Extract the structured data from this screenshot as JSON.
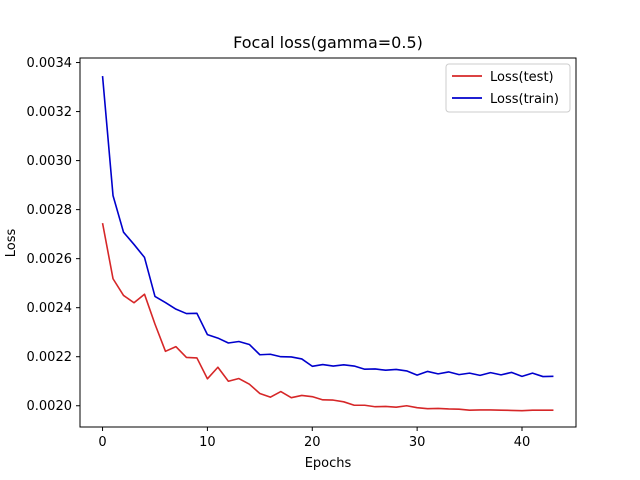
{
  "chart_data": {
    "type": "line",
    "title": "Focal loss(gamma=0.5)",
    "xlabel": "Epochs",
    "ylabel": "Loss",
    "xlim": [
      -2.15,
      45.15
    ],
    "ylim": [
      0.0019133,
      0.0034185
    ],
    "xticks": [
      0,
      10,
      20,
      30,
      40
    ],
    "yticks": [
      0.002,
      0.0022,
      0.0024,
      0.0026,
      0.0028,
      0.003,
      0.0032,
      0.0034
    ],
    "ytick_labels": [
      "0.0020",
      "0.0022",
      "0.0024",
      "0.0026",
      "0.0028",
      "0.0030",
      "0.0032",
      "0.0034"
    ],
    "grid": false,
    "legend_position": "top-right",
    "x": [
      0,
      1,
      2,
      3,
      4,
      5,
      6,
      7,
      8,
      9,
      10,
      11,
      12,
      13,
      14,
      15,
      16,
      17,
      18,
      19,
      20,
      21,
      22,
      23,
      24,
      25,
      26,
      27,
      28,
      29,
      30,
      31,
      32,
      33,
      34,
      35,
      36,
      37,
      38,
      39,
      40,
      41,
      42,
      43
    ],
    "series": [
      {
        "name": "Loss(test)",
        "color": "#d62728",
        "values": [
          0.002745,
          0.002518,
          0.00245,
          0.00242,
          0.002455,
          0.002333,
          0.002222,
          0.002241,
          0.002197,
          0.002195,
          0.00211,
          0.002157,
          0.0021,
          0.002111,
          0.002088,
          0.00205,
          0.002035,
          0.002058,
          0.002033,
          0.002042,
          0.002037,
          0.002024,
          0.002023,
          0.002016,
          0.002002,
          0.002002,
          0.001996,
          0.001997,
          0.001994,
          0.002,
          0.001992,
          0.001988,
          0.001989,
          0.001987,
          0.001986,
          0.001982,
          0.001983,
          0.001983,
          0.001982,
          0.001981,
          0.00198,
          0.001982,
          0.001982,
          0.001982
        ]
      },
      {
        "name": "Loss(train)",
        "color": "#0000cc",
        "values": [
          0.003345,
          0.002857,
          0.002708,
          0.002658,
          0.002605,
          0.002446,
          0.002421,
          0.002394,
          0.002376,
          0.002377,
          0.00229,
          0.002276,
          0.002256,
          0.002262,
          0.00225,
          0.002208,
          0.00221,
          0.0022,
          0.002199,
          0.002191,
          0.002161,
          0.002168,
          0.002162,
          0.002167,
          0.002162,
          0.002149,
          0.00215,
          0.002145,
          0.002148,
          0.002142,
          0.002125,
          0.00214,
          0.00213,
          0.002138,
          0.002127,
          0.002133,
          0.002124,
          0.002135,
          0.002126,
          0.002136,
          0.00212,
          0.002133,
          0.002119,
          0.00212
        ]
      }
    ]
  }
}
